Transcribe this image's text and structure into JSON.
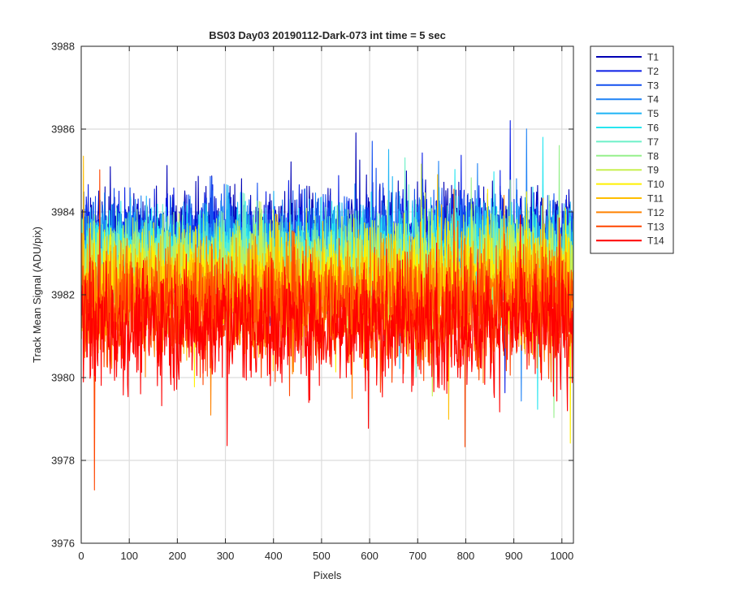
{
  "chart_data": {
    "type": "line",
    "title": "BS03 Day03 20190112-Dark-073 int time = 5 sec",
    "xlabel": "Pixels",
    "ylabel": "Track Mean Signal (ADU/pix)",
    "xlim": [
      0,
      1024
    ],
    "ylim": [
      3976,
      3988
    ],
    "xticks": [
      0,
      100,
      200,
      300,
      400,
      500,
      600,
      700,
      800,
      900,
      1000
    ],
    "yticks": [
      3976,
      3978,
      3980,
      3982,
      3984,
      3986,
      3988
    ],
    "grid": true,
    "legend_placement": "outside-top-right",
    "n_points": 1024,
    "series": [
      {
        "name": "T1",
        "color": "#0000b4",
        "mean": 3983.4,
        "spread": 0.85
      },
      {
        "name": "T2",
        "color": "#0a1ee6",
        "mean": 3983.3,
        "spread": 0.85
      },
      {
        "name": "T3",
        "color": "#1450f0",
        "mean": 3983.2,
        "spread": 0.85
      },
      {
        "name": "T4",
        "color": "#1e82f5",
        "mean": 3983.1,
        "spread": 0.85
      },
      {
        "name": "T5",
        "color": "#1eb4f5",
        "mean": 3983.0,
        "spread": 0.85
      },
      {
        "name": "T6",
        "color": "#28e6f0",
        "mean": 3982.9,
        "spread": 0.85
      },
      {
        "name": "T7",
        "color": "#6ef0c8",
        "mean": 3982.8,
        "spread": 0.85
      },
      {
        "name": "T8",
        "color": "#96f08c",
        "mean": 3982.7,
        "spread": 0.85
      },
      {
        "name": "T9",
        "color": "#c8f050",
        "mean": 3982.5,
        "spread": 0.9
      },
      {
        "name": "T10",
        "color": "#fff000",
        "mean": 3982.3,
        "spread": 0.9
      },
      {
        "name": "T11",
        "color": "#ffbe00",
        "mean": 3982.1,
        "spread": 0.95
      },
      {
        "name": "T12",
        "color": "#ff8200",
        "mean": 3981.9,
        "spread": 1.0
      },
      {
        "name": "T13",
        "color": "#ff4600",
        "mean": 3981.6,
        "spread": 1.0
      },
      {
        "name": "T14",
        "color": "#ff0000",
        "mean": 3981.3,
        "spread": 1.05
      }
    ]
  }
}
